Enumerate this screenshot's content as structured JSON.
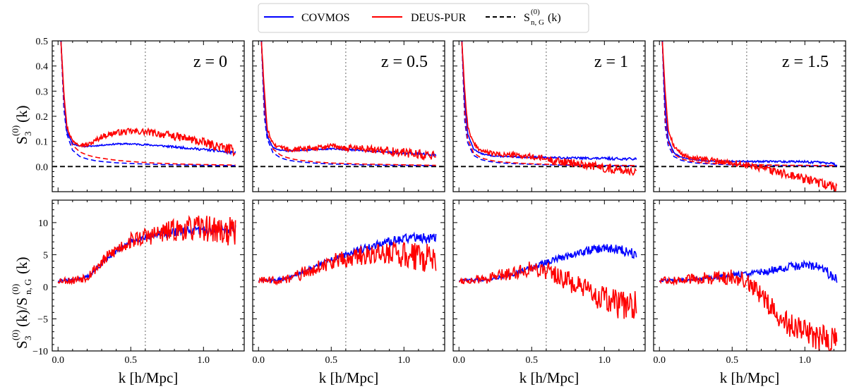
{
  "legend": {
    "placement": "top-center",
    "entries": [
      {
        "label": "COVMOS",
        "color": "#0000ff",
        "style": "solid"
      },
      {
        "label": "DEUS-PUR",
        "color": "#ff0000",
        "style": "solid"
      },
      {
        "label": "S_{n,G}^{(0)}(k)",
        "color": "#000000",
        "style": "dashed"
      }
    ]
  },
  "xlabel": "k [h/Mpc]",
  "ylabel_top": "S_3^{(0)}(k)",
  "ylabel_bottom": "S_3^{(0)}(k)/S_{n,G}^{(0)}(k)",
  "colors": {
    "covmos": "#0000ff",
    "deus": "#ff0000",
    "gauss": "#000000",
    "vline": "#808080"
  },
  "chart_data": {
    "type": "line",
    "xlim": [
      -0.04,
      1.28
    ],
    "xticks": [
      0.0,
      0.5,
      1.0
    ],
    "xtick_labels": [
      "0.0",
      "0.5",
      "1.0"
    ],
    "vline_x": 0.6,
    "top_row": {
      "ylim": [
        -0.1,
        0.5
      ],
      "yticks": [
        0.0,
        0.1,
        0.2,
        0.3,
        0.4,
        0.5
      ],
      "ytick_labels": [
        "0.0",
        "0.1",
        "0.2",
        "0.3",
        "0.4",
        "0.5"
      ],
      "hline_y": 0.0
    },
    "bottom_row": {
      "ylim": [
        -10,
        13.5
      ],
      "yticks": [
        -10,
        -5,
        0,
        5,
        10
      ],
      "ytick_labels": [
        "−10",
        "−5",
        "0",
        "5",
        "10"
      ]
    },
    "panels": [
      {
        "annotation": "z = 0",
        "top": {
          "x": [
            0.02,
            0.04,
            0.06,
            0.1,
            0.15,
            0.2,
            0.25,
            0.3,
            0.4,
            0.5,
            0.6,
            0.7,
            0.8,
            0.9,
            1.0,
            1.1,
            1.2,
            1.22
          ],
          "covmos": [
            0.5,
            0.28,
            0.14,
            0.09,
            0.082,
            0.08,
            0.082,
            0.085,
            0.09,
            0.09,
            0.087,
            0.083,
            0.078,
            0.073,
            0.068,
            0.062,
            0.055,
            0.055
          ],
          "deus": [
            0.5,
            0.3,
            0.16,
            0.1,
            0.09,
            0.085,
            0.1,
            0.12,
            0.135,
            0.14,
            0.138,
            0.13,
            0.12,
            0.11,
            0.095,
            0.08,
            0.065,
            0.06
          ],
          "gauss_covmos": [
            0.5,
            0.23,
            0.13,
            0.065,
            0.04,
            0.03,
            0.024,
            0.02,
            0.015,
            0.012,
            0.01,
            0.008,
            0.007,
            0.006,
            0.005,
            0.004,
            0.004,
            0.004
          ],
          "gauss_deus": [
            0.5,
            0.26,
            0.15,
            0.085,
            0.058,
            0.046,
            0.038,
            0.033,
            0.025,
            0.02,
            0.016,
            0.013,
            0.011,
            0.009,
            0.008,
            0.007,
            0.006,
            0.006
          ]
        },
        "bottom": {
          "x": [
            0.0,
            0.1,
            0.2,
            0.3,
            0.4,
            0.5,
            0.6,
            0.7,
            0.8,
            0.9,
            1.0,
            1.1,
            1.2,
            1.22
          ],
          "covmos": [
            1.0,
            1.0,
            1.5,
            3.5,
            5.5,
            7.0,
            7.8,
            8.2,
            8.5,
            8.7,
            8.8,
            8.9,
            9.0,
            9.0
          ],
          "deus": [
            1.0,
            1.0,
            1.6,
            3.8,
            5.8,
            7.2,
            7.8,
            8.3,
            8.8,
            9.0,
            9.2,
            8.8,
            8.5,
            8.0
          ]
        }
      },
      {
        "annotation": "z = 0.5",
        "top": {
          "x": [
            0.02,
            0.04,
            0.06,
            0.1,
            0.15,
            0.2,
            0.25,
            0.3,
            0.4,
            0.5,
            0.6,
            0.7,
            0.8,
            0.9,
            1.0,
            1.1,
            1.2,
            1.22
          ],
          "covmos": [
            0.5,
            0.26,
            0.12,
            0.075,
            0.065,
            0.062,
            0.063,
            0.065,
            0.068,
            0.07,
            0.068,
            0.065,
            0.062,
            0.058,
            0.054,
            0.05,
            0.047,
            0.046
          ],
          "deus": [
            0.5,
            0.3,
            0.15,
            0.09,
            0.075,
            0.07,
            0.068,
            0.07,
            0.075,
            0.078,
            0.075,
            0.07,
            0.066,
            0.062,
            0.055,
            0.048,
            0.042,
            0.04
          ],
          "gauss_covmos": [
            0.5,
            0.2,
            0.11,
            0.055,
            0.035,
            0.026,
            0.021,
            0.018,
            0.013,
            0.01,
            0.009,
            0.007,
            0.006,
            0.005,
            0.005,
            0.004,
            0.004,
            0.004
          ],
          "gauss_deus": [
            0.5,
            0.23,
            0.13,
            0.07,
            0.046,
            0.035,
            0.028,
            0.024,
            0.018,
            0.014,
            0.012,
            0.01,
            0.009,
            0.008,
            0.007,
            0.006,
            0.005,
            0.005
          ]
        },
        "bottom": {
          "x": [
            0.0,
            0.1,
            0.2,
            0.3,
            0.4,
            0.5,
            0.6,
            0.7,
            0.8,
            0.9,
            1.0,
            1.1,
            1.2,
            1.22
          ],
          "covmos": [
            1.0,
            1.0,
            1.3,
            2.2,
            3.3,
            4.3,
            5.0,
            5.8,
            6.5,
            7.0,
            7.5,
            7.8,
            7.5,
            7.4
          ],
          "deus": [
            1.0,
            1.0,
            1.2,
            2.0,
            3.0,
            3.8,
            4.3,
            4.8,
            5.0,
            5.2,
            5.0,
            4.7,
            4.4,
            4.2
          ]
        }
      },
      {
        "annotation": "z = 1",
        "top": {
          "x": [
            0.02,
            0.04,
            0.06,
            0.1,
            0.15,
            0.2,
            0.25,
            0.3,
            0.4,
            0.5,
            0.6,
            0.7,
            0.8,
            0.9,
            1.0,
            1.1,
            1.2,
            1.22
          ],
          "covmos": [
            0.5,
            0.25,
            0.13,
            0.07,
            0.052,
            0.045,
            0.042,
            0.04,
            0.038,
            0.037,
            0.036,
            0.035,
            0.034,
            0.033,
            0.032,
            0.031,
            0.03,
            0.03
          ],
          "deus": [
            0.5,
            0.3,
            0.16,
            0.09,
            0.065,
            0.055,
            0.05,
            0.048,
            0.044,
            0.038,
            0.03,
            0.02,
            0.012,
            0.005,
            -0.005,
            -0.012,
            -0.018,
            -0.02
          ],
          "gauss_covmos": [
            0.5,
            0.18,
            0.095,
            0.045,
            0.028,
            0.021,
            0.017,
            0.014,
            0.011,
            0.009,
            0.007,
            0.006,
            0.005,
            0.004,
            0.004,
            0.003,
            0.003,
            0.003
          ],
          "gauss_deus": [
            0.5,
            0.21,
            0.11,
            0.055,
            0.035,
            0.027,
            0.021,
            0.018,
            0.014,
            0.011,
            0.009,
            0.008,
            0.007,
            0.006,
            0.005,
            0.005,
            0.004,
            0.004
          ]
        },
        "bottom": {
          "x": [
            0.0,
            0.1,
            0.2,
            0.3,
            0.4,
            0.5,
            0.6,
            0.7,
            0.8,
            0.9,
            1.0,
            1.1,
            1.2,
            1.22
          ],
          "covmos": [
            1.0,
            1.0,
            1.2,
            1.6,
            2.2,
            3.0,
            3.8,
            4.5,
            5.2,
            5.7,
            6.0,
            5.8,
            5.3,
            5.2
          ],
          "deus": [
            1.0,
            1.0,
            1.3,
            1.8,
            2.4,
            2.9,
            2.6,
            1.5,
            0.2,
            -1.0,
            -2.0,
            -2.8,
            -3.0,
            -3.1
          ]
        }
      },
      {
        "annotation": "z = 1.5",
        "top": {
          "x": [
            0.02,
            0.04,
            0.06,
            0.1,
            0.15,
            0.2,
            0.25,
            0.3,
            0.4,
            0.5,
            0.6,
            0.7,
            0.8,
            0.9,
            1.0,
            1.1,
            1.2,
            1.22
          ],
          "covmos": [
            0.5,
            0.23,
            0.11,
            0.055,
            0.037,
            0.03,
            0.026,
            0.024,
            0.022,
            0.021,
            0.02,
            0.02,
            0.02,
            0.02,
            0.019,
            0.016,
            0.01,
            0.008
          ],
          "deus": [
            0.5,
            0.3,
            0.15,
            0.08,
            0.05,
            0.038,
            0.032,
            0.028,
            0.022,
            0.015,
            0.005,
            -0.008,
            -0.02,
            -0.035,
            -0.05,
            -0.065,
            -0.08,
            -0.085
          ],
          "gauss_covmos": [
            0.5,
            0.16,
            0.085,
            0.04,
            0.025,
            0.018,
            0.014,
            0.012,
            0.009,
            0.007,
            0.006,
            0.005,
            0.004,
            0.004,
            0.003,
            0.003,
            0.003,
            0.003
          ],
          "gauss_deus": [
            0.5,
            0.19,
            0.1,
            0.05,
            0.031,
            0.023,
            0.018,
            0.015,
            0.012,
            0.009,
            0.008,
            0.007,
            0.006,
            0.005,
            0.005,
            0.004,
            0.004,
            0.004
          ]
        },
        "bottom": {
          "x": [
            0.0,
            0.1,
            0.2,
            0.3,
            0.4,
            0.5,
            0.6,
            0.7,
            0.8,
            0.9,
            1.0,
            1.1,
            1.2,
            1.22
          ],
          "covmos": [
            1.0,
            1.0,
            1.0,
            1.2,
            1.5,
            1.8,
            2.0,
            2.3,
            2.7,
            3.1,
            3.4,
            3.2,
            1.5,
            1.0
          ],
          "deus": [
            1.0,
            1.0,
            1.1,
            1.3,
            1.5,
            1.6,
            0.8,
            -1.5,
            -4.0,
            -6.0,
            -7.2,
            -7.8,
            -8.2,
            -8.2
          ]
        }
      }
    ]
  }
}
